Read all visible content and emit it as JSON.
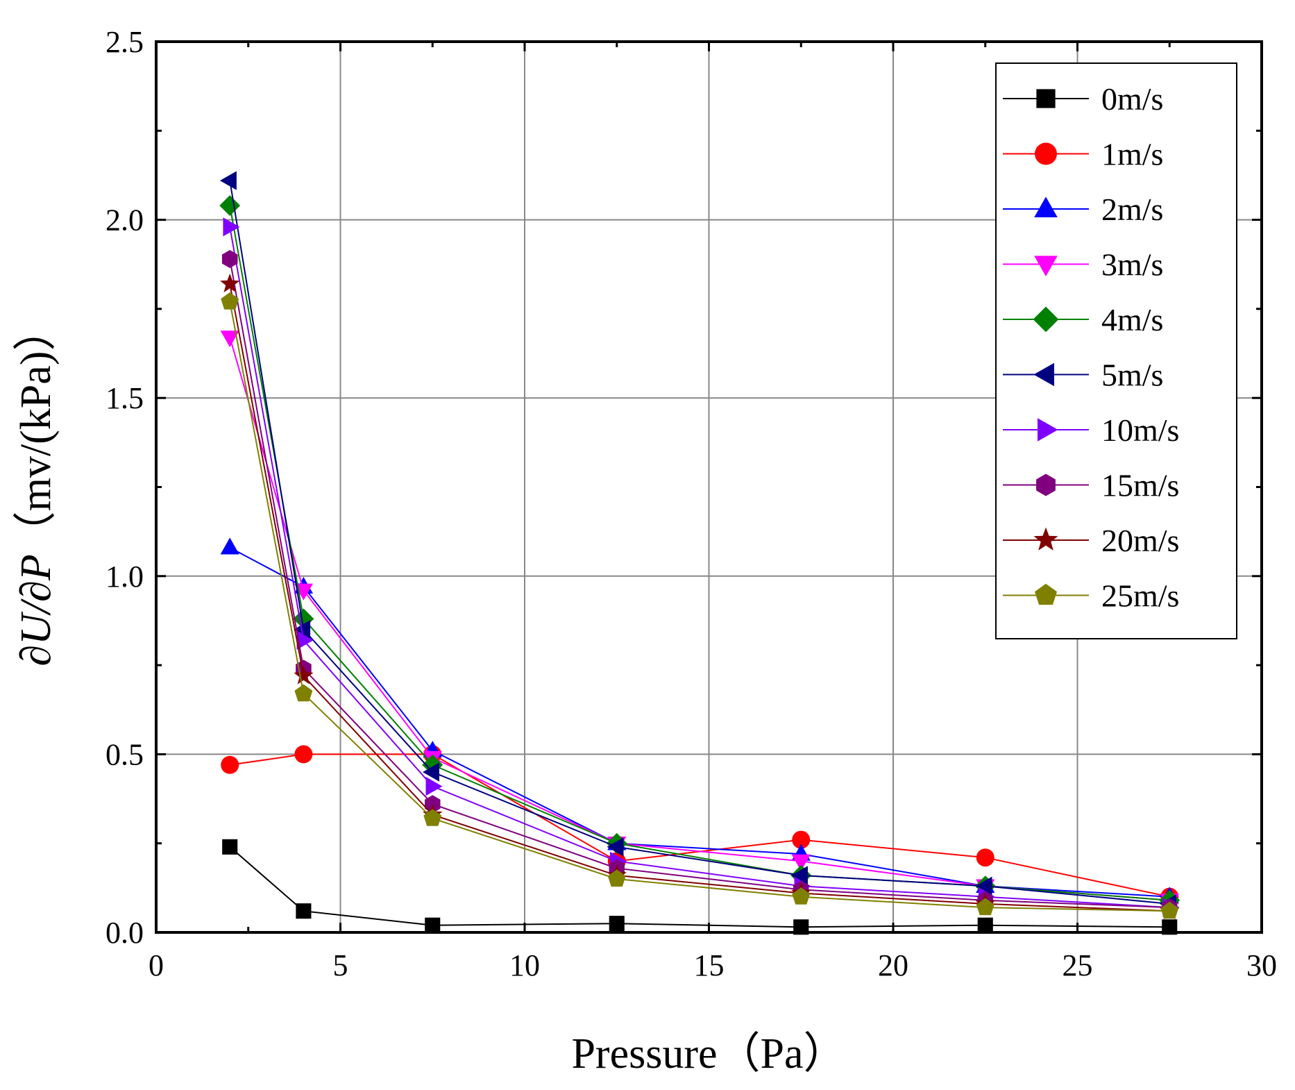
{
  "chart_data": {
    "type": "line",
    "title": "",
    "xlabel": "Pressure（Pa）",
    "ylabel_parts": {
      "derivative": "∂U/∂P",
      "units": "（mv/(kPa)）"
    },
    "xlim": [
      0,
      30
    ],
    "ylim": [
      0,
      2.5
    ],
    "xticks": [
      "0",
      "5",
      "10",
      "15",
      "20",
      "25",
      "30"
    ],
    "yticks": [
      "0.0",
      "0.5",
      "1.0",
      "1.5",
      "2.0",
      "2.5"
    ],
    "grid": true,
    "legend_position": "top-right",
    "x": [
      2,
      4,
      7.5,
      12.5,
      17.5,
      22.5,
      27.5
    ],
    "series": [
      {
        "name": "0m/s",
        "color": "#000000",
        "marker": "square",
        "values": [
          0.24,
          0.06,
          0.02,
          0.025,
          0.015,
          0.02,
          0.015
        ]
      },
      {
        "name": "1m/s",
        "color": "#ff0000",
        "marker": "circle",
        "values": [
          0.47,
          0.5,
          0.5,
          0.2,
          0.26,
          0.21,
          0.1
        ]
      },
      {
        "name": "2m/s",
        "color": "#0000ff",
        "marker": "triangle-up",
        "values": [
          1.08,
          0.97,
          0.51,
          0.25,
          0.22,
          0.13,
          0.1
        ]
      },
      {
        "name": "3m/s",
        "color": "#ff00ff",
        "marker": "triangle-down",
        "values": [
          1.67,
          0.96,
          0.49,
          0.25,
          0.2,
          0.13,
          0.09
        ]
      },
      {
        "name": "4m/s",
        "color": "#008000",
        "marker": "diamond",
        "values": [
          2.04,
          0.88,
          0.47,
          0.25,
          0.16,
          0.13,
          0.09
        ]
      },
      {
        "name": "5m/s",
        "color": "#000080",
        "marker": "triangle-left",
        "values": [
          2.11,
          0.85,
          0.45,
          0.24,
          0.16,
          0.13,
          0.08
        ]
      },
      {
        "name": "10m/s",
        "color": "#8000ff",
        "marker": "triangle-right",
        "values": [
          1.98,
          0.82,
          0.41,
          0.2,
          0.13,
          0.1,
          0.07
        ]
      },
      {
        "name": "15m/s",
        "color": "#800080",
        "marker": "hexagon",
        "values": [
          1.89,
          0.74,
          0.36,
          0.18,
          0.12,
          0.09,
          0.07
        ]
      },
      {
        "name": "20m/s",
        "color": "#800000",
        "marker": "star",
        "values": [
          1.82,
          0.72,
          0.33,
          0.16,
          0.11,
          0.08,
          0.06
        ]
      },
      {
        "name": "25m/s",
        "color": "#808000",
        "marker": "pentagon",
        "values": [
          1.77,
          0.67,
          0.32,
          0.15,
          0.1,
          0.07,
          0.06
        ]
      }
    ]
  }
}
